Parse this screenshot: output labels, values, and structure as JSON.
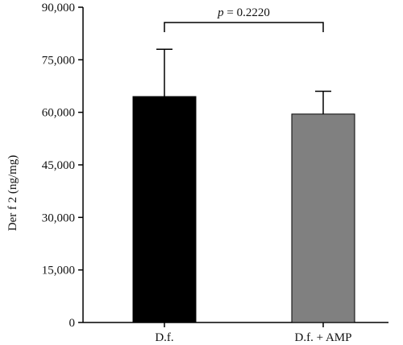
{
  "chart_data": {
    "type": "bar",
    "categories": [
      "D.f.",
      "D.f. + AMP"
    ],
    "values": [
      64500,
      59500
    ],
    "error_upper": [
      78000,
      66000
    ],
    "colors": [
      "#000000",
      "#808080"
    ],
    "ylabel": "Der f 2 (ng/mg)",
    "ylim": [
      0,
      90000
    ],
    "yticks": [
      0,
      15000,
      30000,
      45000,
      60000,
      75000,
      90000
    ],
    "ytick_labels": [
      "0",
      "15,000",
      "30,000",
      "45,000",
      "60,000",
      "75,000",
      "90,000"
    ],
    "annotation": {
      "p_symbol": "p",
      "p_value_text": " = 0.2220",
      "bracket_between": [
        "D.f.",
        "D.f. + AMP"
      ]
    },
    "grid": false,
    "legend": "none"
  }
}
